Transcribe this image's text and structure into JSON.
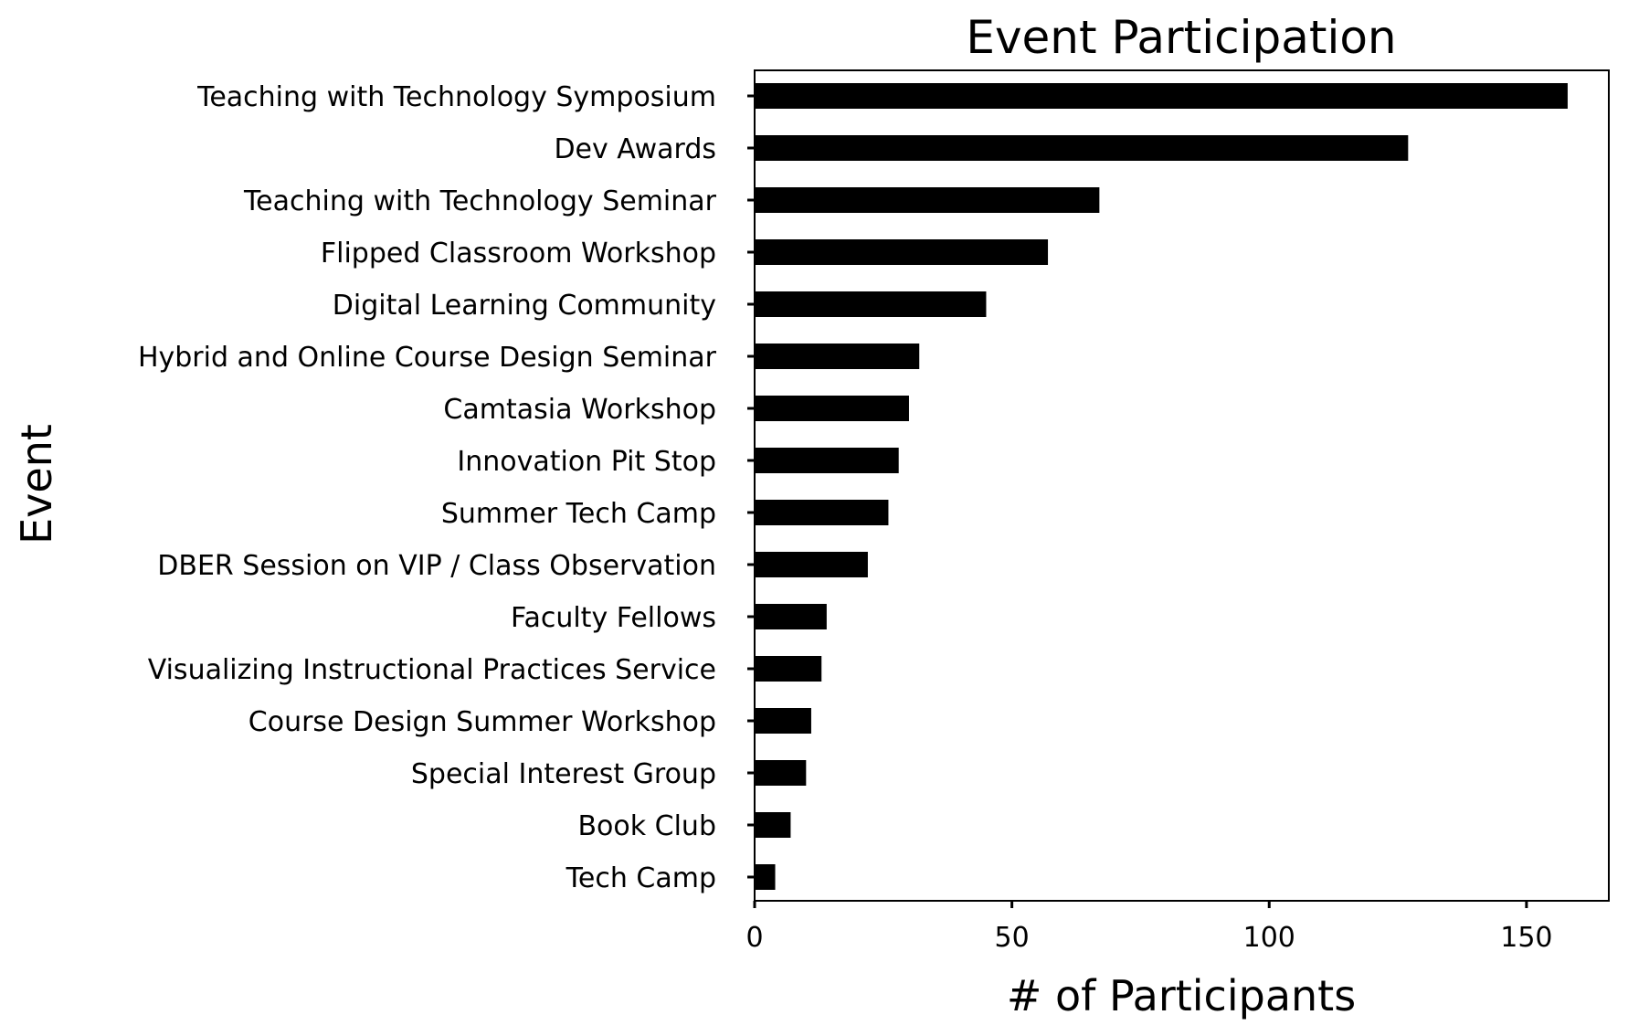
{
  "chart_data": {
    "type": "bar",
    "orientation": "horizontal",
    "title": "Event Participation",
    "xlabel": "# of Participants",
    "ylabel": "Event",
    "xlim": [
      0,
      166
    ],
    "xticks": [
      0,
      50,
      100,
      150
    ],
    "grid": false,
    "bar_color": "#000000",
    "categories": [
      "Teaching with Technology Symposium",
      "Dev Awards",
      "Teaching with Technology Seminar",
      "Flipped Classroom Workshop",
      "Digital Learning Community",
      "Hybrid and Online Course Design Seminar",
      "Camtasia Workshop",
      "Innovation Pit Stop",
      "Summer Tech Camp",
      "DBER Session on VIP / Class Observation",
      "Faculty Fellows",
      "Visualizing Instructional Practices Service",
      "Course Design Summer Workshop",
      "Special Interest Group",
      "Book Club ",
      "Tech Camp"
    ],
    "values": [
      158,
      127,
      67,
      57,
      45,
      32,
      30,
      28,
      26,
      22,
      14,
      13,
      11,
      10,
      7,
      4
    ]
  }
}
